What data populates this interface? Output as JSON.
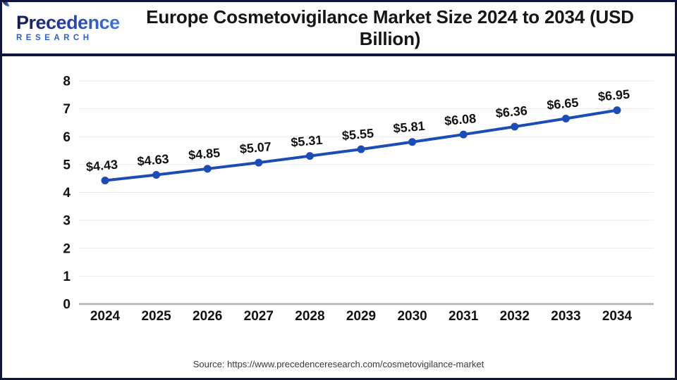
{
  "header": {
    "logo": {
      "brand": "Precedence",
      "subtext": "RESEARCH"
    },
    "title": "Europe Cosmetovigilance Market Size 2024 to 2034 (USD Billion)"
  },
  "chart_data": {
    "type": "line",
    "title": "Europe Cosmetovigilance Market Size 2024 to 2034 (USD Billion)",
    "categories": [
      "2024",
      "2025",
      "2026",
      "2027",
      "2028",
      "2029",
      "2030",
      "2031",
      "2032",
      "2033",
      "2034"
    ],
    "series": [
      {
        "name": "Europe Cosmetovigilance Market Size (USD Billion)",
        "values": [
          4.43,
          4.63,
          4.85,
          5.07,
          5.31,
          5.55,
          5.81,
          6.08,
          6.36,
          6.65,
          6.95
        ]
      }
    ],
    "value_labels": [
      "$4.43",
      "$4.63",
      "$4.85",
      "$5.07",
      "$5.31",
      "$5.55",
      "$5.81",
      "$6.08",
      "$6.36",
      "$6.65",
      "$6.95"
    ],
    "xlabel": "",
    "ylabel": "",
    "ylim": [
      0,
      8
    ],
    "yticks": [
      0,
      1,
      2,
      3,
      4,
      5,
      6,
      7,
      8
    ],
    "grid": true,
    "legend": "none",
    "colors": {
      "line": "#1d4cb5",
      "marker": "#1d4cb5",
      "grid": "#e9e9e9",
      "axis": "#b0b0b0",
      "label": "#111111"
    }
  },
  "footer": {
    "source": "Source: https://www.precedenceresearch.com/cosmetovigilance-market"
  },
  "theme": {
    "border_navy": "#10143d",
    "brand_navy": "#151a4d",
    "brand_blue": "#3e7ad8",
    "research_blue": "#2b5fc7"
  }
}
